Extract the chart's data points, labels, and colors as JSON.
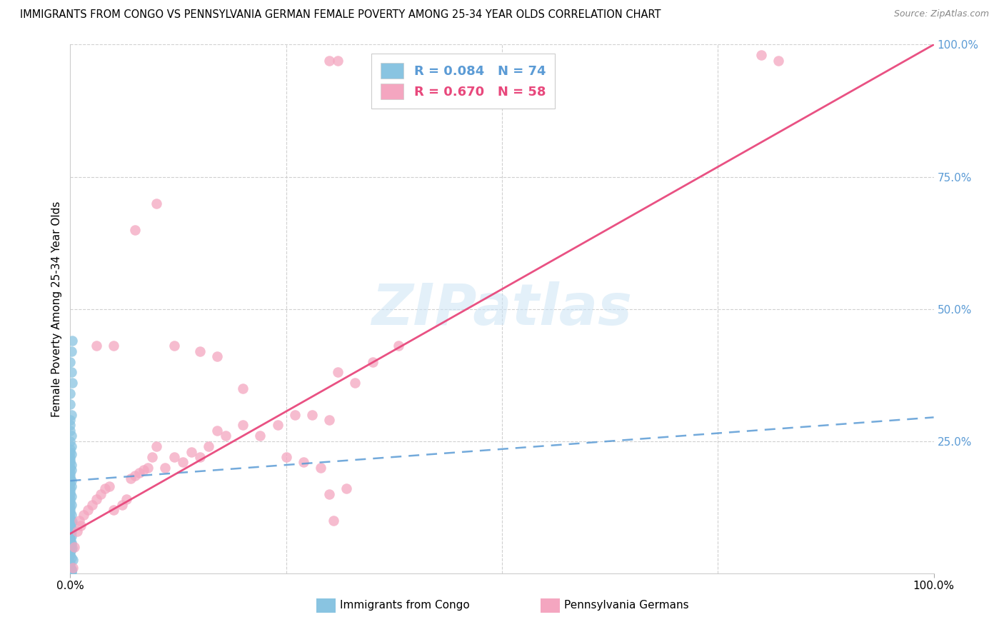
{
  "title": "IMMIGRANTS FROM CONGO VS PENNSYLVANIA GERMAN FEMALE POVERTY AMONG 25-34 YEAR OLDS CORRELATION CHART",
  "source": "Source: ZipAtlas.com",
  "ylabel": "Female Poverty Among 25-34 Year Olds",
  "watermark": "ZIPatlas",
  "legend_r1": "R = 0.084",
  "legend_n1": "N = 74",
  "legend_r2": "R = 0.670",
  "legend_n2": "N = 58",
  "color_blue": "#89c4e1",
  "color_pink": "#f4a6c0",
  "color_blue_line": "#5b9bd5",
  "color_pink_line": "#e8487c",
  "color_blue_text": "#5b9bd5",
  "color_pink_text": "#e8487c",
  "color_right_axis": "#5b9bd5",
  "blue_x": [
    0.0,
    0.0,
    0.001,
    0.0,
    0.0,
    0.001,
    0.0,
    0.001,
    0.0,
    0.0,
    0.001,
    0.0,
    0.0,
    0.001,
    0.0,
    0.001,
    0.0,
    0.0,
    0.001,
    0.0,
    0.0,
    0.0,
    0.001,
    0.0,
    0.0,
    0.001,
    0.0,
    0.0,
    0.0,
    0.001,
    0.0,
    0.001,
    0.0,
    0.0,
    0.0,
    0.001,
    0.0,
    0.001,
    0.0,
    0.0,
    0.0,
    0.001,
    0.0,
    0.0,
    0.001,
    0.0,
    0.001,
    0.0,
    0.0,
    0.0,
    0.001,
    0.0,
    0.0,
    0.002,
    0.001,
    0.0,
    0.001,
    0.002,
    0.0,
    0.001,
    0.0,
    0.003,
    0.002,
    0.001,
    0.0,
    0.001,
    0.0,
    0.002,
    0.001,
    0.0,
    0.001,
    0.0,
    0.001,
    0.0
  ],
  "blue_y": [
    0.01,
    0.02,
    0.03,
    0.035,
    0.04,
    0.045,
    0.05,
    0.055,
    0.06,
    0.065,
    0.07,
    0.075,
    0.08,
    0.085,
    0.09,
    0.095,
    0.1,
    0.105,
    0.11,
    0.115,
    0.12,
    0.125,
    0.13,
    0.135,
    0.14,
    0.145,
    0.15,
    0.155,
    0.16,
    0.165,
    0.17,
    0.175,
    0.18,
    0.185,
    0.19,
    0.195,
    0.2,
    0.205,
    0.21,
    0.215,
    0.22,
    0.225,
    0.23,
    0.235,
    0.24,
    0.25,
    0.26,
    0.27,
    0.28,
    0.29,
    0.3,
    0.32,
    0.34,
    0.36,
    0.38,
    0.4,
    0.42,
    0.44,
    0.005,
    0.008,
    0.015,
    0.025,
    0.048,
    0.058,
    0.068,
    0.078,
    0.088,
    0.098,
    0.002,
    0.003,
    0.004,
    0.006,
    0.007,
    0.009
  ],
  "blue_trend_y0": 0.175,
  "blue_trend_y1": 0.295,
  "pink_x": [
    0.003,
    0.005,
    0.008,
    0.01,
    0.012,
    0.015,
    0.02,
    0.025,
    0.03,
    0.035,
    0.04,
    0.045,
    0.05,
    0.06,
    0.065,
    0.07,
    0.075,
    0.08,
    0.085,
    0.09,
    0.095,
    0.1,
    0.11,
    0.12,
    0.13,
    0.14,
    0.15,
    0.16,
    0.17,
    0.18,
    0.2,
    0.22,
    0.24,
    0.26,
    0.28,
    0.3,
    0.31,
    0.33,
    0.35,
    0.38,
    0.03,
    0.05,
    0.075,
    0.1,
    0.12,
    0.15,
    0.17,
    0.2,
    0.25,
    0.27,
    0.29,
    0.3,
    0.31,
    0.32,
    0.3,
    0.305,
    0.8,
    0.82
  ],
  "pink_y": [
    0.01,
    0.05,
    0.08,
    0.1,
    0.09,
    0.11,
    0.12,
    0.13,
    0.14,
    0.15,
    0.16,
    0.165,
    0.12,
    0.13,
    0.14,
    0.18,
    0.185,
    0.19,
    0.195,
    0.2,
    0.22,
    0.24,
    0.2,
    0.22,
    0.21,
    0.23,
    0.22,
    0.24,
    0.27,
    0.26,
    0.28,
    0.26,
    0.28,
    0.3,
    0.3,
    0.29,
    0.38,
    0.36,
    0.4,
    0.43,
    0.43,
    0.43,
    0.65,
    0.7,
    0.43,
    0.42,
    0.41,
    0.35,
    0.22,
    0.21,
    0.2,
    0.97,
    0.97,
    0.16,
    0.15,
    0.1,
    0.98,
    0.97
  ],
  "pink_trend_y0": 0.075,
  "pink_trend_y1": 1.0,
  "xlim": [
    0.0,
    1.0
  ],
  "ylim": [
    0.0,
    1.0
  ],
  "figsize": [
    14.06,
    8.92
  ],
  "dpi": 100
}
